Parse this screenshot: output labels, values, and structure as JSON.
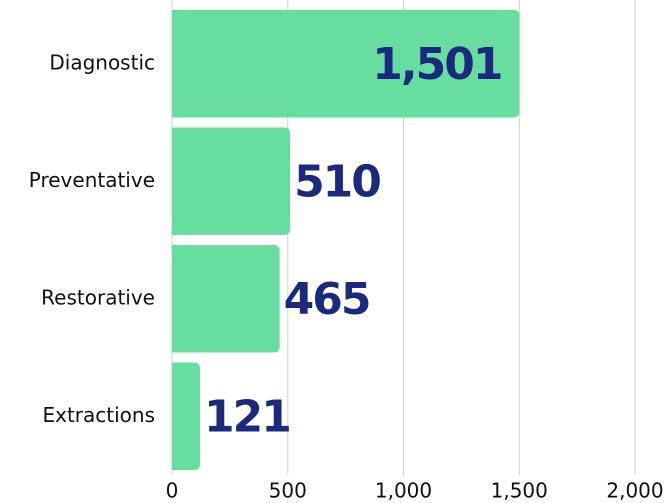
{
  "chart_data": {
    "type": "hbar",
    "categories": [
      "Diagnostic",
      "Preventative",
      "Restorative",
      "Extractions"
    ],
    "values": [
      1501,
      510,
      465,
      121
    ],
    "value_labels": [
      "1,501",
      "510",
      "465",
      "121"
    ],
    "color": "#67de9f",
    "label_color": "#1b2a7f",
    "xlim": [
      0,
      2000
    ],
    "xticks": [
      0,
      500,
      {
        "value": 1000,
        "label": "1,000"
      },
      {
        "value": 1500,
        "label": "1,500"
      },
      {
        "value": 2000,
        "label": "2,000"
      }
    ],
    "grid": true
  }
}
